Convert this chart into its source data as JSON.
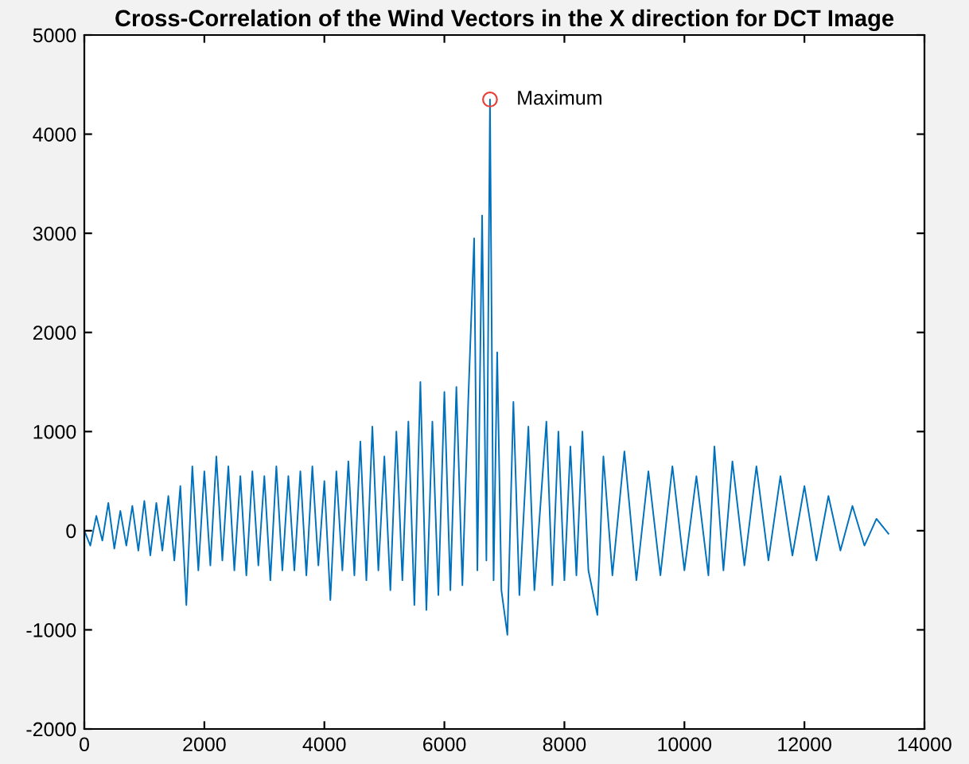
{
  "chart_data": {
    "type": "line",
    "title": "Cross-Correlation of the Wind Vectors in the X direction for DCT Image",
    "xlim": [
      0,
      14000
    ],
    "xticks": [
      0,
      2000,
      4000,
      6000,
      8000,
      10000,
      12000,
      14000
    ],
    "ylim": [
      -2000,
      5000
    ],
    "yticks": [
      -2000,
      -1000,
      0,
      1000,
      2000,
      3000,
      4000,
      5000
    ],
    "grid": false,
    "legend": false,
    "series": [
      {
        "color": "#0072bd",
        "marker": "none",
        "x": [
          0,
          100,
          200,
          300,
          400,
          500,
          600,
          700,
          800,
          900,
          1000,
          1100,
          1200,
          1300,
          1400,
          1500,
          1600,
          1700,
          1800,
          1900,
          2000,
          2100,
          2200,
          2300,
          2400,
          2500,
          2600,
          2700,
          2800,
          2900,
          3000,
          3100,
          3200,
          3300,
          3400,
          3500,
          3600,
          3700,
          3800,
          3900,
          4000,
          4100,
          4200,
          4300,
          4400,
          4500,
          4600,
          4700,
          4800,
          4900,
          5000,
          5100,
          5200,
          5300,
          5400,
          5500,
          5600,
          5700,
          5800,
          5900,
          6000,
          6100,
          6200,
          6300,
          6400,
          6496,
          6550,
          6629,
          6700,
          6760,
          6820,
          6880,
          6950,
          7050,
          7150,
          7250,
          7400,
          7500,
          7700,
          7800,
          7900,
          8000,
          8100,
          8200,
          8300,
          8400,
          8550,
          8650,
          8800,
          9000,
          9200,
          9400,
          9600,
          9800,
          10000,
          10200,
          10400,
          10500,
          10650,
          10800,
          11000,
          11200,
          11400,
          11600,
          11800,
          12000,
          12200,
          12400,
          12600,
          12800,
          13000,
          13200,
          13400
        ],
        "values": [
          0,
          -150,
          150,
          -100,
          280,
          -180,
          200,
          -150,
          250,
          -200,
          300,
          -250,
          280,
          -200,
          350,
          -300,
          450,
          -750,
          650,
          -400,
          600,
          -350,
          750,
          -300,
          650,
          -400,
          550,
          -450,
          600,
          -350,
          550,
          -500,
          650,
          -400,
          550,
          -400,
          600,
          -450,
          650,
          -350,
          500,
          -700,
          600,
          -400,
          700,
          -450,
          900,
          -500,
          1050,
          -400,
          750,
          -600,
          1000,
          -500,
          1100,
          -750,
          1500,
          -800,
          1100,
          -650,
          1400,
          -600,
          1450,
          -550,
          1350,
          2950,
          -400,
          3180,
          -300,
          4350,
          -500,
          1800,
          -600,
          -1050,
          1300,
          -650,
          1050,
          -600,
          1100,
          -550,
          1000,
          -500,
          850,
          -450,
          1000,
          -400,
          -850,
          750,
          -450,
          800,
          -500,
          600,
          -450,
          650,
          -400,
          550,
          -450,
          850,
          -400,
          700,
          -350,
          650,
          -300,
          550,
          -250,
          450,
          -300,
          350,
          -200,
          250,
          -150,
          120,
          -30
        ]
      },
      {
        "type": "scatter",
        "color": "#e8413c",
        "marker": "circle",
        "x": [
          6760
        ],
        "values": [
          4350
        ]
      }
    ],
    "annotations": [
      {
        "text": "Maximum",
        "x": 6760,
        "y": 4350
      }
    ]
  }
}
